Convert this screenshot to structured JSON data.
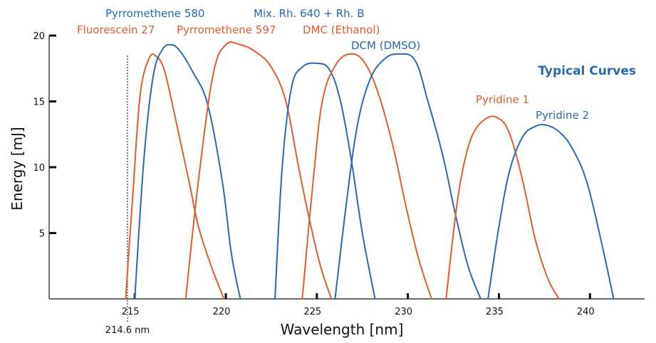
{
  "chart_data": {
    "type": "line",
    "title": "Typical Curves",
    "xlabel": "Wavelength [nm]",
    "ylabel": "Energy [mJ]",
    "xlim": [
      210.3,
      243
    ],
    "ylim": [
      0,
      20
    ],
    "x_ticks": [
      215,
      220,
      225,
      230,
      235,
      240
    ],
    "y_ticks": [
      5,
      10,
      15,
      20
    ],
    "grid": false,
    "marker": {
      "x": 214.6,
      "label": "214.6 nm"
    },
    "colors": {
      "orange": "#e05c2f",
      "blue": "#2a68b3",
      "title": "#2a68b3"
    },
    "series": [
      {
        "name": "Fluorescein 27",
        "color": "#e05c2f",
        "x": [
          214.5,
          214.9,
          215.3,
          215.8,
          216.2,
          216.6,
          217.0,
          217.5,
          218.0,
          218.5,
          219.2,
          219.9
        ],
        "y": [
          0,
          8,
          15.5,
          18.3,
          18.4,
          17.5,
          15.2,
          12.0,
          8.8,
          5.5,
          2.5,
          0
        ]
      },
      {
        "name": "Pyrromethene 580",
        "color": "#2a68b3",
        "x": [
          215.0,
          215.5,
          216.0,
          216.5,
          217.0,
          217.5,
          218.2,
          219.0,
          219.8,
          220.3,
          220.8
        ],
        "y": [
          0,
          10.5,
          16.8,
          18.9,
          19.3,
          18.8,
          17.2,
          14.8,
          9.0,
          3.5,
          0
        ]
      },
      {
        "name": "Pyrromethene 597",
        "color": "#e05c2f",
        "x": [
          217.8,
          218.5,
          219.3,
          220.0,
          220.8,
          221.6,
          222.5,
          223.3,
          224.0,
          224.6,
          225.2,
          225.8
        ],
        "y": [
          0,
          9.0,
          17.0,
          19.3,
          19.3,
          18.8,
          17.6,
          15.0,
          10.0,
          6.0,
          2.5,
          0
        ]
      },
      {
        "name": "Mix. Rh. 640 + Rh. B",
        "color": "#2a68b3",
        "x": [
          222.7,
          223.1,
          223.6,
          224.2,
          225.0,
          225.7,
          226.3,
          226.9,
          227.5,
          228.2
        ],
        "y": [
          0,
          10.0,
          16.0,
          17.6,
          17.9,
          17.4,
          15.0,
          10.5,
          5.0,
          0
        ]
      },
      {
        "name": "DMC (Ethanol)",
        "color": "#e05c2f",
        "x": [
          224.2,
          224.8,
          225.3,
          226.0,
          226.8,
          227.6,
          228.4,
          229.2,
          229.9,
          230.6,
          231.3
        ],
        "y": [
          0,
          9.0,
          15.0,
          17.7,
          18.6,
          18.0,
          15.5,
          11.5,
          7.0,
          3.0,
          0
        ]
      },
      {
        "name": "DCM (DMSO)",
        "color": "#2a68b3",
        "x": [
          226.0,
          226.6,
          227.2,
          227.9,
          228.7,
          229.5,
          230.4,
          231.1,
          231.9,
          232.6,
          233.3,
          234.0
        ],
        "y": [
          0,
          7.0,
          13.0,
          16.6,
          18.2,
          18.6,
          18.1,
          15.0,
          11.0,
          6.5,
          2.5,
          0
        ]
      },
      {
        "name": "Pyridine 1",
        "color": "#e05c2f",
        "x": [
          232.1,
          232.5,
          232.9,
          233.5,
          234.3,
          235.0,
          235.6,
          236.3,
          237.0,
          237.7,
          238.3
        ],
        "y": [
          0,
          5.0,
          9.0,
          12.3,
          13.7,
          13.7,
          12.5,
          9.0,
          4.5,
          1.5,
          0
        ]
      },
      {
        "name": "Pyridine 2",
        "color": "#2a68b3",
        "x": [
          234.4,
          235.0,
          235.6,
          236.3,
          237.0,
          237.6,
          238.3,
          239.0,
          239.8,
          240.6,
          241.3
        ],
        "y": [
          0,
          5.5,
          9.8,
          12.3,
          13.1,
          13.2,
          12.7,
          11.5,
          9.0,
          4.5,
          0
        ]
      }
    ],
    "labels": {
      "fluorescein27": "Fluorescein 27",
      "pyrromethene580": "Pyrromethene 580",
      "pyrromethene597": "Pyrromethene 597",
      "mixrh640": "Mix. Rh. 640 + Rh. B",
      "dmc_ethanol": "DMC (Ethanol)",
      "dcm_dmso": "DCM (DMSO)",
      "pyridine1": "Pyridine 1",
      "pyridine2": "Pyridine 2"
    }
  }
}
